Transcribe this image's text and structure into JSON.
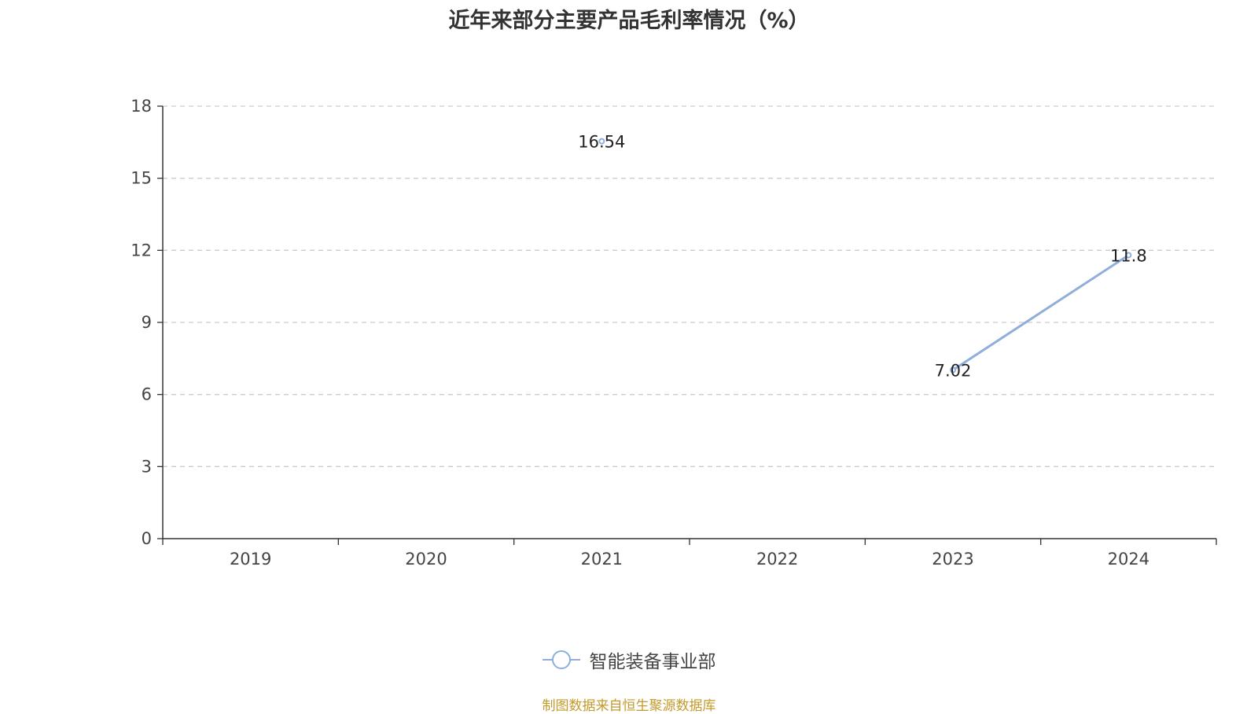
{
  "chart_data": {
    "type": "line",
    "title": "近年来部分主要产品毛利率情况（%）",
    "categories": [
      "2019",
      "2020",
      "2021",
      "2022",
      "2023",
      "2024"
    ],
    "series": [
      {
        "name": "智能装备事业部",
        "values": [
          null,
          null,
          16.54,
          null,
          7.02,
          11.8
        ],
        "labels": [
          null,
          null,
          "16.54",
          null,
          "7.02",
          "11.8"
        ],
        "color": "#8eaedb"
      }
    ],
    "ylim": [
      0,
      18
    ],
    "yticks": [
      0,
      3,
      6,
      9,
      12,
      15,
      18
    ],
    "grid": true,
    "legend_position": "bottom-center"
  },
  "footer": {
    "source": "制图数据来自恒生聚源数据库"
  },
  "colors": {
    "series": "#8eaedb",
    "source_text": "#c49a2c",
    "grid": "#cccccc",
    "axis": "#333333"
  }
}
